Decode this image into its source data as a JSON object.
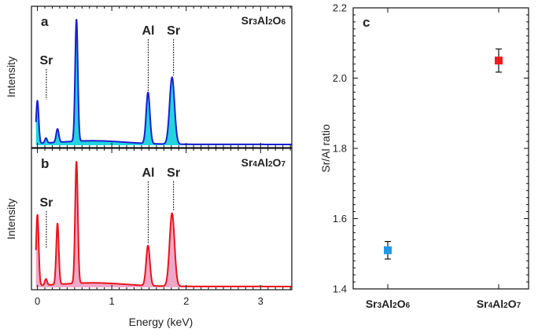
{
  "chart_data": [
    {
      "panel": "a",
      "type": "area",
      "label": "Sr3Al2O6",
      "label_parts": [
        [
          "Sr",
          false
        ],
        [
          "3",
          true
        ],
        [
          "Al",
          false
        ],
        [
          "2",
          true
        ],
        [
          "O",
          false
        ],
        [
          "6",
          true
        ]
      ],
      "xlabel": "",
      "ylabel": "Intensity",
      "xlim": [
        -0.08,
        3.42
      ],
      "line_color": "#1a1fd0",
      "fill_color": "#22d4e0",
      "peak_labels": [
        {
          "text": "Sr",
          "x": 0.12,
          "height": 0.35
        },
        {
          "text": "Al",
          "x": 1.49,
          "height": 0.42
        },
        {
          "text": "Sr",
          "x": 1.83,
          "height": 0.55
        }
      ],
      "peaks": [
        {
          "x": 0.0,
          "h": 0.35,
          "w": 0.017
        },
        {
          "x": 0.115,
          "h": 0.04,
          "w": 0.015
        },
        {
          "x": 0.27,
          "h": 0.11,
          "w": 0.018
        },
        {
          "x": 0.525,
          "h": 1.0,
          "w": 0.018
        },
        {
          "x": 1.487,
          "h": 0.42,
          "w": 0.025
        },
        {
          "x": 1.81,
          "h": 0.55,
          "w": 0.033
        }
      ]
    },
    {
      "panel": "b",
      "type": "area",
      "label": "Sr4Al2O7",
      "label_parts": [
        [
          "Sr",
          false
        ],
        [
          "4",
          true
        ],
        [
          "Al",
          false
        ],
        [
          "2",
          true
        ],
        [
          "O",
          false
        ],
        [
          "7",
          true
        ]
      ],
      "xlabel": "Energy (keV)",
      "ylabel": "Intensity",
      "xlim": [
        -0.08,
        3.42
      ],
      "xticks": [
        0,
        1,
        2,
        3
      ],
      "line_color": "#e8141c",
      "fill_color": "#f0a8c8",
      "peak_labels": [
        {
          "text": "Sr",
          "x": 0.12,
          "height": 0.3
        },
        {
          "text": "Al",
          "x": 1.49,
          "height": 0.33
        },
        {
          "text": "Sr",
          "x": 1.83,
          "height": 0.6
        }
      ],
      "peaks": [
        {
          "x": 0.0,
          "h": 0.58,
          "w": 0.017
        },
        {
          "x": 0.115,
          "h": 0.05,
          "w": 0.015
        },
        {
          "x": 0.27,
          "h": 0.5,
          "w": 0.017
        },
        {
          "x": 0.525,
          "h": 1.0,
          "w": 0.018
        },
        {
          "x": 1.487,
          "h": 0.33,
          "w": 0.025
        },
        {
          "x": 1.81,
          "h": 0.6,
          "w": 0.033
        }
      ]
    },
    {
      "panel": "c",
      "type": "scatter",
      "categories": [
        "Sr3Al2O6",
        "Sr4Al2O7"
      ],
      "category_parts": [
        [
          [
            "Sr",
            false
          ],
          [
            "3",
            true
          ],
          [
            "Al",
            false
          ],
          [
            "2",
            true
          ],
          [
            "O",
            false
          ],
          [
            "6",
            true
          ]
        ],
        [
          [
            "Sr",
            false
          ],
          [
            "4",
            true
          ],
          [
            "Al",
            false
          ],
          [
            "2",
            true
          ],
          [
            "O",
            false
          ],
          [
            "7",
            true
          ]
        ]
      ],
      "values": [
        1.51,
        2.05
      ],
      "errors": [
        0.025,
        0.033
      ],
      "colors": [
        "#1e9be8",
        "#ee1c1c"
      ],
      "ylabel": "Sr/Al ratio",
      "ylim": [
        1.4,
        2.2
      ],
      "yticks": [
        "1.4",
        "1.6",
        "1.8",
        "2.0",
        "2.2"
      ],
      "grid": false
    }
  ]
}
